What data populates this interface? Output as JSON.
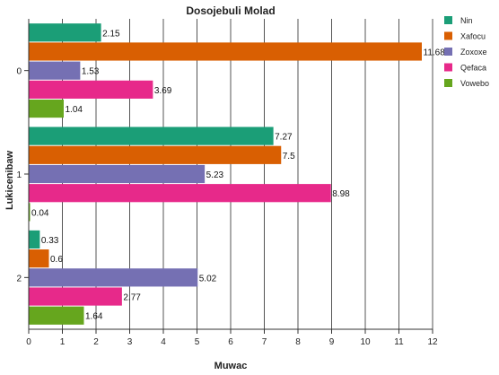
{
  "chart_data": {
    "type": "bar",
    "orientation": "horizontal",
    "title": "Dosojebuli Molad",
    "xlabel": "Muwac",
    "ylabel": "Lukicenibaw",
    "categories": [
      "0",
      "1",
      "2"
    ],
    "xlim": [
      0,
      12
    ],
    "xticks": [
      "0",
      "1",
      "2",
      "3",
      "4",
      "5",
      "6",
      "7",
      "8",
      "9",
      "10",
      "11",
      "12"
    ],
    "grid": true,
    "legend_position": "top-right",
    "series": [
      {
        "name": "Nin",
        "color": "#1b9e77",
        "values": [
          2.15,
          7.27,
          0.33
        ]
      },
      {
        "name": "Xafocu",
        "color": "#d95f02",
        "values": [
          11.68,
          7.5,
          0.6
        ]
      },
      {
        "name": "Zoxoxe",
        "color": "#7570b3",
        "values": [
          1.53,
          5.23,
          5.02
        ]
      },
      {
        "name": "Qefaca",
        "color": "#e7298a",
        "values": [
          3.69,
          8.98,
          2.77
        ]
      },
      {
        "name": "Vowebo",
        "color": "#66a61e",
        "values": [
          1.04,
          0.04,
          1.64
        ]
      }
    ],
    "data_labels": [
      [
        "2.15",
        "11.68",
        "1.53",
        "3.69",
        "1.04"
      ],
      [
        "7.27",
        "7.5",
        "5.23",
        "8.98",
        "0.04"
      ],
      [
        "0.33",
        "0.6",
        "5.02",
        "2.77",
        "1.64"
      ]
    ]
  }
}
